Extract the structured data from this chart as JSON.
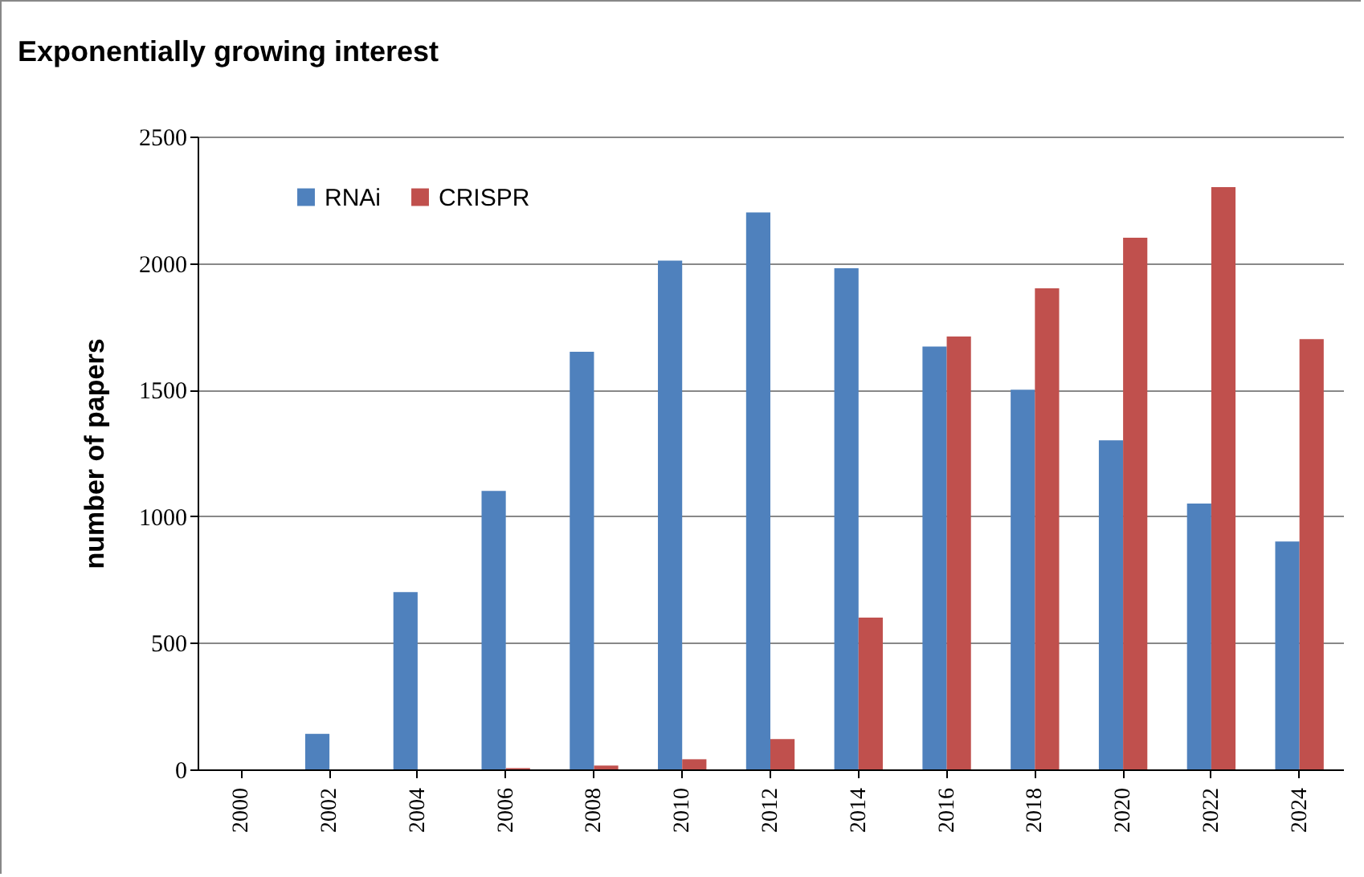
{
  "chart_data": {
    "type": "bar",
    "title": "Exponentially growing interest",
    "ylabel": "number of papers",
    "categories": [
      "2000",
      "2002",
      "2004",
      "2006",
      "2008",
      "2010",
      "2012",
      "2014",
      "2016",
      "2018",
      "2020",
      "2022",
      "2024"
    ],
    "series": [
      {
        "name": "RNAi",
        "color": "#4f81bd",
        "values": [
          0,
          140,
          700,
          1100,
          1650,
          2010,
          2200,
          1980,
          1670,
          1500,
          1300,
          1050,
          900
        ]
      },
      {
        "name": "CRISPR",
        "color": "#c0504d",
        "values": [
          0,
          0,
          0,
          5,
          15,
          40,
          120,
          600,
          1710,
          1900,
          2100,
          2300,
          1700
        ]
      }
    ],
    "ylim": [
      0,
      2500
    ],
    "yticks": [
      0,
      500,
      1000,
      1500,
      2000,
      2500
    ],
    "grid": "y",
    "legend": "top left"
  }
}
